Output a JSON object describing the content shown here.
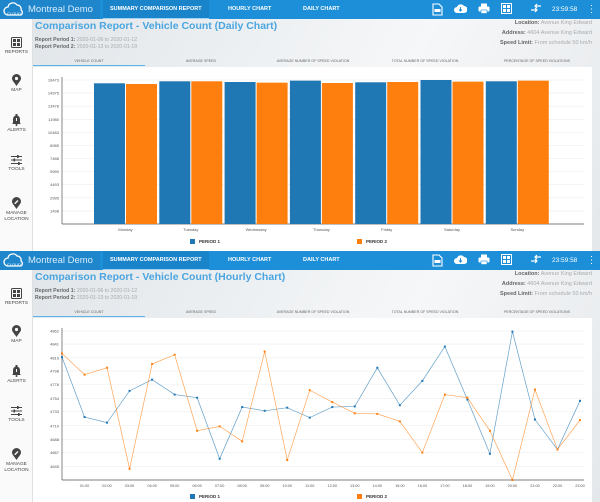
{
  "app": {
    "title": "Montreal Demo",
    "logo_text": "CLOUD",
    "nav": [
      "SUMMARY COMPARISON REPORT",
      "HOURLY CHART",
      "DAILY CHART"
    ],
    "active_nav": 0,
    "time": "23:59:58",
    "toolbar_icons": [
      "pdf-icon",
      "cloud-download-icon",
      "print-icon",
      "report-grid-icon",
      "swap-arrows-icon",
      "more-vertical-icon"
    ]
  },
  "sidebar": [
    {
      "label": "REPORTS",
      "icon": "reports-icon"
    },
    {
      "label": "MAP",
      "icon": "map-pin-icon"
    },
    {
      "label": "ALERTS",
      "icon": "bell-alert-icon"
    },
    {
      "label": "TOOLS",
      "icon": "sliders-icon"
    },
    {
      "label": "MANAGE LOCATION",
      "icon": "location-edit-icon"
    }
  ],
  "info": {
    "location_label": "Location:",
    "location": "Avenue King Edward",
    "address_label": "Address:",
    "address": "4604 Avenue King Edward",
    "speed_label": "Speed Limit:",
    "speed": "From schedule 50 km/h"
  },
  "report": {
    "p1_label": "Report Period 1:",
    "p1": "2020-01-06 to 2020-01-12",
    "p2_label": "Report Period 2:",
    "p2": "2020-01-13 to 2020-01-19"
  },
  "tabs": [
    "VEHICLE COUNT",
    "AVERAGE SPEED",
    "AVERAGE NUMBER OF SPEED VIOLATION",
    "TOTAL NUMBER OF SPEED VIOLATION",
    "PERCENTAGE OF SPEED VIOLATIONS"
  ],
  "active_tab": 0,
  "colors": {
    "period1": "#1f77b4",
    "period2": "#ff7f0e",
    "accent": "#1c8fd8",
    "title": "#4aa5e0"
  },
  "daily": {
    "title": "Comparison Report - Vehicle Count (Daily Chart)"
  },
  "hourly": {
    "title": "Comparison Report - Vehicle Count (Hourly Chart)"
  },
  "chart_data": [
    {
      "type": "bar",
      "categories": [
        "Monday",
        "Tuesday",
        "Wednesday",
        "Thursday",
        "Friday",
        "Saturday",
        "Sunday"
      ],
      "series": [
        {
          "name": "PERIOD 1",
          "values": [
            16096,
            16325,
            16245,
            16400,
            16210,
            16473,
            16325
          ]
        },
        {
          "name": "PERIOD 2",
          "values": [
            16016,
            16325,
            16170,
            16130,
            16245,
            16285,
            16400
          ]
        }
      ],
      "yticks": [
        "1498",
        "2995",
        "4493",
        "5990",
        "7488",
        "8985",
        "10483",
        "11980",
        "13478",
        "14975",
        "16473"
      ],
      "ylim": [
        0,
        16473
      ],
      "grid": true,
      "legend": "bottom"
    },
    {
      "type": "line",
      "x": [
        "00:00",
        "01:00",
        "02:00",
        "03:00",
        "04:00",
        "05:00",
        "06:00",
        "07:00",
        "08:00",
        "09:00",
        "10:00",
        "11:00",
        "12:00",
        "13:00",
        "14:00",
        "15:00",
        "16:00",
        "17:00",
        "18:00",
        "19:00",
        "20:00",
        "21:00",
        "22:00",
        "23:00"
      ],
      "xticks": [
        "01:00",
        "02:00",
        "03:00",
        "04:00",
        "05:00",
        "06:00",
        "07:00",
        "08:00",
        "09:00",
        "10:00",
        "11:00",
        "12:00",
        "13:00",
        "14:00",
        "15:00",
        "16:00",
        "17:00",
        "18:00",
        "19:00",
        "20:00",
        "21:00",
        "22:00",
        "23:00"
      ],
      "series": [
        {
          "name": "PERIOD 1",
          "values": [
            4820,
            4724,
            4715,
            4766,
            4784,
            4760,
            4755,
            4657,
            4740,
            4734,
            4739,
            4723,
            4740,
            4741,
            4803,
            4743,
            4782,
            4837,
            4752,
            4665,
            4861,
            4720,
            4672,
            4750
          ]
        },
        {
          "name": "PERIOD 2",
          "values": [
            4826,
            4792,
            4803,
            4641,
            4809,
            4824,
            4702,
            4709,
            4685,
            4829,
            4655,
            4767,
            4748,
            4730,
            4729,
            4717,
            4667,
            4760,
            4755,
            4702,
            4623,
            4768,
            4672,
            4719
          ]
        }
      ],
      "yticks": [
        "4645",
        "4667",
        "4688",
        "4710",
        "4733",
        "4754",
        "4776",
        "4798",
        "4819",
        "4841",
        "4862"
      ],
      "ylim": [
        4623,
        4862
      ],
      "grid": true,
      "legend": "bottom"
    }
  ]
}
